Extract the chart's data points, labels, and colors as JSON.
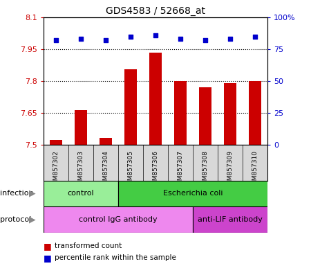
{
  "title": "GDS4583 / 52668_at",
  "samples": [
    "GSM857302",
    "GSM857303",
    "GSM857304",
    "GSM857305",
    "GSM857306",
    "GSM857307",
    "GSM857308",
    "GSM857309",
    "GSM857310"
  ],
  "bar_values": [
    7.525,
    7.665,
    7.535,
    7.855,
    7.935,
    7.8,
    7.77,
    7.79,
    7.8
  ],
  "percentile_values": [
    82,
    83,
    82,
    85,
    86,
    83,
    82,
    83,
    85
  ],
  "ylim_left": [
    7.5,
    8.1
  ],
  "ylim_right": [
    0,
    100
  ],
  "yticks_left": [
    7.5,
    7.65,
    7.8,
    7.95,
    8.1
  ],
  "yticks_right": [
    0,
    25,
    50,
    75,
    100
  ],
  "ytick_labels_left": [
    "7.5",
    "7.65",
    "7.8",
    "7.95",
    "8.1"
  ],
  "ytick_labels_right": [
    "0",
    "25",
    "50",
    "75",
    "100%"
  ],
  "bar_color": "#cc0000",
  "dot_color": "#0000cc",
  "bar_width": 0.5,
  "infection_groups": [
    {
      "label": "control",
      "start": 0,
      "end": 3,
      "color": "#99ee99"
    },
    {
      "label": "Escherichia coli",
      "start": 3,
      "end": 9,
      "color": "#44cc44"
    }
  ],
  "protocol_groups": [
    {
      "label": "control IgG antibody",
      "start": 0,
      "end": 6,
      "color": "#ee88ee"
    },
    {
      "label": "anti-LIF antibody",
      "start": 6,
      "end": 9,
      "color": "#cc44cc"
    }
  ],
  "legend_items": [
    {
      "color": "#cc0000",
      "label": "transformed count"
    },
    {
      "color": "#0000cc",
      "label": "percentile rank within the sample"
    }
  ],
  "bg_color": "#d8d8d8",
  "grid_lines": [
    7.65,
    7.8,
    7.95
  ]
}
